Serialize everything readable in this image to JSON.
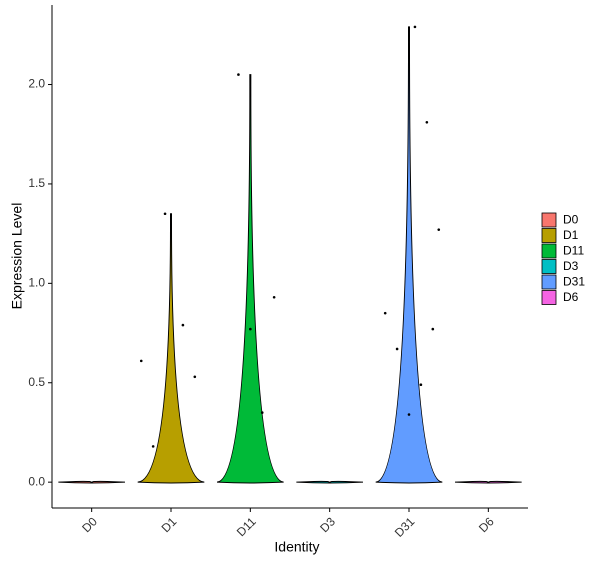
{
  "chart_data": {
    "type": "violin",
    "x_label": "Identity",
    "y_label": "Expression Level",
    "categories": [
      "D0",
      "D1",
      "D11",
      "D3",
      "D31",
      "D6"
    ],
    "colors": [
      "#F8766D",
      "#B79F00",
      "#00BA38",
      "#00BFC4",
      "#619CFF",
      "#F564E3"
    ],
    "values": [
      0,
      1.35,
      2.05,
      0,
      2.29,
      0
    ],
    "points": [
      [],
      [
        0.79,
        0.53,
        0.61,
        0.18,
        1.35
      ],
      [
        2.05,
        0.77,
        0.35,
        0.93
      ],
      [],
      [
        2.29,
        1.81,
        1.27,
        0.85,
        0.67,
        0.34,
        0.49,
        0.77
      ],
      []
    ],
    "ylim": [
      -0.13,
      2.4
    ],
    "yticks": [
      {
        "value": 0,
        "label": "0.0"
      },
      0.5,
      {
        "value": 1,
        "label": "1.0"
      },
      1.5,
      {
        "value": 2,
        "label": "2.0"
      }
    ],
    "legend": "right"
  }
}
